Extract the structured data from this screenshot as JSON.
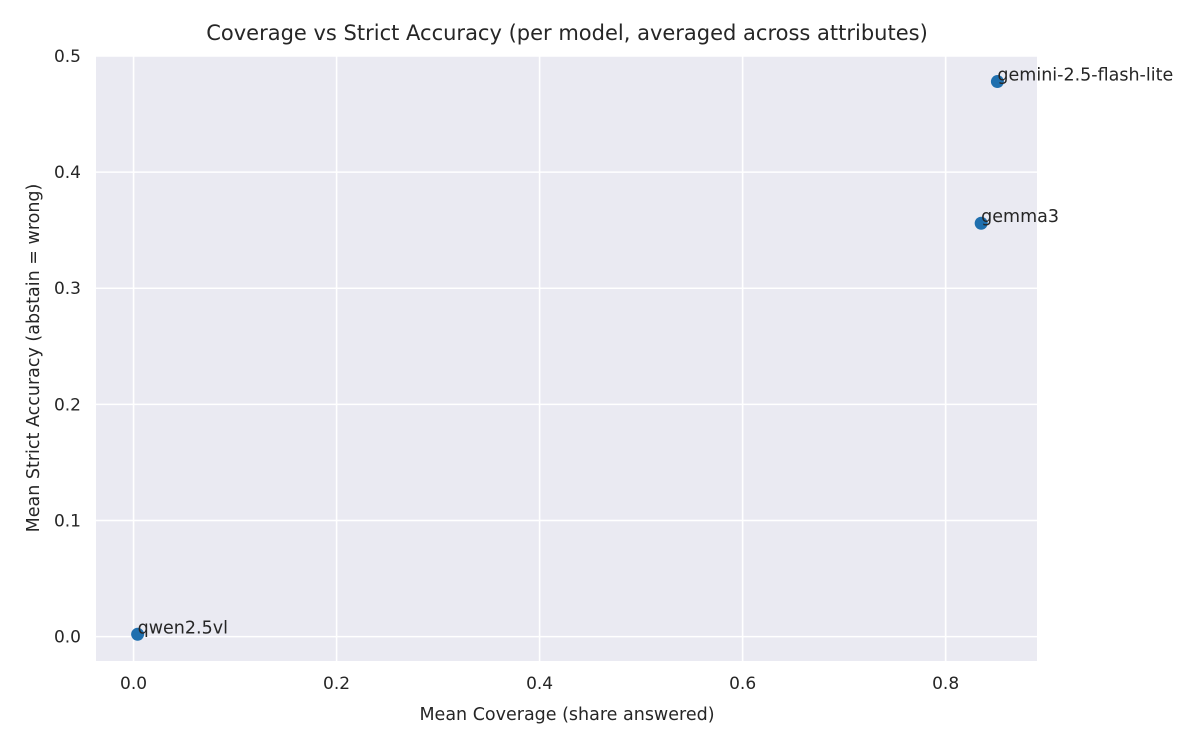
{
  "chart_data": {
    "type": "scatter",
    "title": "Coverage vs Strict Accuracy (per model, averaged across attributes)",
    "xlabel": "Mean Coverage (share answered)",
    "ylabel": "Mean Strict Accuracy (abstain = wrong)",
    "xlim": [
      -0.037,
      0.89
    ],
    "ylim": [
      -0.021,
      0.5
    ],
    "xticks": [
      0.0,
      0.2,
      0.4,
      0.6,
      0.8
    ],
    "xtick_labels": [
      "0.0",
      "0.2",
      "0.4",
      "0.6",
      "0.8"
    ],
    "yticks": [
      0.0,
      0.1,
      0.2,
      0.3,
      0.4,
      0.5
    ],
    "ytick_labels": [
      "0.0",
      "0.1",
      "0.2",
      "0.3",
      "0.4",
      "0.5"
    ],
    "grid": true,
    "background_color": "#eaeaf2",
    "marker_color": "#1f6fae",
    "points": [
      {
        "label": "gemini-2.5-flash-lite",
        "x": 0.851,
        "y": 0.478
      },
      {
        "label": "gemma3",
        "x": 0.835,
        "y": 0.356
      },
      {
        "label": "qwen2.5vl",
        "x": 0.004,
        "y": 0.002
      }
    ]
  }
}
